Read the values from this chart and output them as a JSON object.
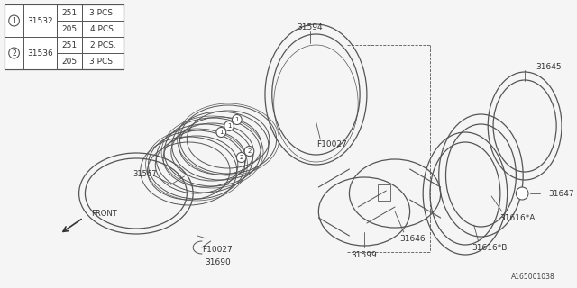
{
  "bg_color": "#f5f5f5",
  "line_color": "#555555",
  "fig_width": 6.4,
  "fig_height": 3.2,
  "dpi": 100,
  "part_id": "A165001038",
  "table": {
    "rows": [
      [
        "1",
        "31532",
        "251",
        "3 PCS."
      ],
      [
        "1",
        "31532",
        "205",
        "4 PCS."
      ],
      [
        "2",
        "31536",
        "251",
        "2 PCS."
      ],
      [
        "2",
        "31536",
        "205",
        "3 PCS."
      ]
    ]
  }
}
